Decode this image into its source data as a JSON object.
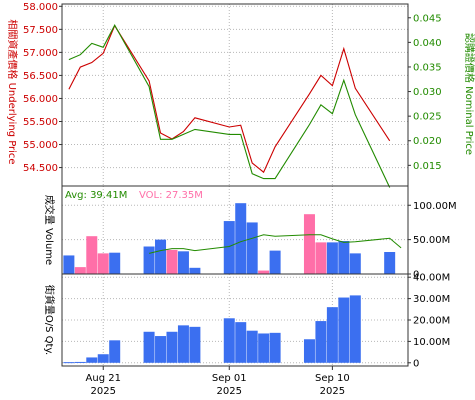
{
  "chart_data": [
    {
      "type": "line",
      "panel": "price",
      "left_axis_label": "相關資產價格 Underlying Price",
      "right_axis_label": "認購證價格 Nominal Price",
      "left_ticks": [
        54.5,
        55.0,
        55.5,
        56.0,
        56.5,
        57.0,
        57.5,
        58.0
      ],
      "left_tick_labels": [
        "54.500",
        "55.000",
        "55.500",
        "56.000",
        "56.500",
        "57.000",
        "57.500",
        "58.000"
      ],
      "right_ticks": [
        0.015,
        0.02,
        0.025,
        0.03,
        0.035,
        0.04,
        0.045
      ],
      "right_tick_labels": [
        "0.015",
        "0.020",
        "0.025",
        "0.030",
        "0.035",
        "0.040",
        "0.045"
      ],
      "left_ylim": [
        54.1,
        58.05
      ],
      "right_ylim": [
        0.0108,
        0.0478
      ],
      "grid": true,
      "x": [
        "2025-08-18",
        "2025-08-19",
        "2025-08-20",
        "2025-08-21",
        "2025-08-22",
        "2025-08-25",
        "2025-08-26",
        "2025-08-27",
        "2025-08-28",
        "2025-08-29",
        "2025-09-01",
        "2025-09-02",
        "2025-09-03",
        "2025-09-04",
        "2025-09-05",
        "2025-09-08",
        "2025-09-09",
        "2025-09-10",
        "2025-09-11",
        "2025-09-12",
        "2025-09-15",
        "2025-09-16"
      ],
      "series": [
        {
          "axis": "left",
          "color": "#cc0000",
          "values": [
            56.2,
            56.68,
            56.78,
            56.98,
            57.58,
            56.38,
            55.25,
            55.12,
            55.28,
            55.58,
            55.38,
            55.42,
            54.6,
            54.4,
            54.95,
            56.1,
            56.5,
            56.28,
            57.08,
            56.22,
            55.08,
            null
          ]
        },
        {
          "axis": "right",
          "color": "#228b00",
          "values": [
            0.0365,
            0.0375,
            0.0398,
            0.039,
            0.0435,
            0.031,
            0.0203,
            0.0203,
            0.0213,
            0.0223,
            0.0213,
            0.0213,
            0.0133,
            0.0123,
            0.0123,
            0.0233,
            0.0273,
            0.0255,
            0.0323,
            0.0253,
            0.0105,
            null
          ]
        }
      ]
    },
    {
      "type": "bar",
      "panel": "volume",
      "label": "成交量 Volume",
      "avg_text": "Avg: 39.41M",
      "vol_text": "VOL: 27.35M",
      "y_ticks": [
        0,
        50000000,
        100000000
      ],
      "y_tick_labels": [
        "0",
        "50.00M",
        "100.00M"
      ],
      "ylim": [
        0,
        128000000
      ],
      "grid": true,
      "x": [
        "2025-08-18",
        "2025-08-19",
        "2025-08-20",
        "2025-08-21",
        "2025-08-22",
        "2025-08-25",
        "2025-08-26",
        "2025-08-27",
        "2025-08-28",
        "2025-08-29",
        "2025-09-01",
        "2025-09-02",
        "2025-09-03",
        "2025-09-04",
        "2025-09-05",
        "2025-09-08",
        "2025-09-09",
        "2025-09-10",
        "2025-09-11",
        "2025-09-12",
        "2025-09-15",
        "2025-09-16"
      ],
      "values": [
        27000000,
        10000000,
        55000000,
        30000000,
        31000000,
        40000000,
        50000000,
        35000000,
        33000000,
        9000000,
        77000000,
        103000000,
        75000000,
        5000000,
        34000000,
        87000000,
        46000000,
        46000000,
        48000000,
        30000000,
        32000000,
        null
      ],
      "bar_colors": [
        "#3b6ff0",
        "#ff6fa8",
        "#ff6fa8",
        "#ff6fa8",
        "#3b6ff0",
        "#3b6ff0",
        "#3b6ff0",
        "#ff6fa8",
        "#3b6ff0",
        "#3b6ff0",
        "#3b6ff0",
        "#3b6ff0",
        "#3b6ff0",
        "#ff6fa8",
        "#3b6ff0",
        "#ff6fa8",
        "#ff6fa8",
        "#3b6ff0",
        "#3b6ff0",
        "#3b6ff0",
        "#3b6ff0",
        null
      ],
      "avg_line": [
        null,
        null,
        null,
        null,
        null,
        30000000,
        34000000,
        37000000,
        37000000,
        34000000,
        40000000,
        47000000,
        52000000,
        57000000,
        55000000,
        57000000,
        57000000,
        51000000,
        46000000,
        47000000,
        52000000,
        38000000
      ]
    },
    {
      "type": "bar",
      "panel": "outstanding",
      "label": "街貨量O/S Qty.",
      "y_ticks": [
        0,
        10000000,
        20000000,
        30000000,
        40000000
      ],
      "y_tick_labels": [
        "0",
        "10.00M",
        "20.00M",
        "30.00M",
        "40.00M"
      ],
      "ylim": [
        -1500000,
        41500000
      ],
      "grid": true,
      "x": [
        "2025-08-18",
        "2025-08-19",
        "2025-08-20",
        "2025-08-21",
        "2025-08-22",
        "2025-08-25",
        "2025-08-26",
        "2025-08-27",
        "2025-08-28",
        "2025-08-29",
        "2025-09-01",
        "2025-09-02",
        "2025-09-03",
        "2025-09-04",
        "2025-09-05",
        "2025-09-08",
        "2025-09-09",
        "2025-09-10",
        "2025-09-11",
        "2025-09-12",
        "2025-09-15",
        "2025-09-16"
      ],
      "values": [
        300000,
        400000,
        2500000,
        4000000,
        10500000,
        14500000,
        12500000,
        14500000,
        17500000,
        16800000,
        20800000,
        19000000,
        15000000,
        13700000,
        14000000,
        11000000,
        19500000,
        26000000,
        30500000,
        31500000,
        null,
        null
      ],
      "color": "#3b6ff0"
    }
  ],
  "x_axis": {
    "tick_dates": [
      "2025-08-21",
      "2025-09-01",
      "2025-09-10"
    ],
    "tick_labels_line1": [
      "Aug 21",
      "Sep 01",
      "Sep 10"
    ],
    "tick_labels_line2": [
      "2025",
      "2025",
      "2025"
    ]
  },
  "colors": {
    "left_axis_text": "#cc0000",
    "right_axis_text": "#228b00",
    "avg_text": "#228b00",
    "vol_text": "#ff6fa8",
    "avg_line": "#228b00",
    "grid": "#b8b8b8"
  }
}
